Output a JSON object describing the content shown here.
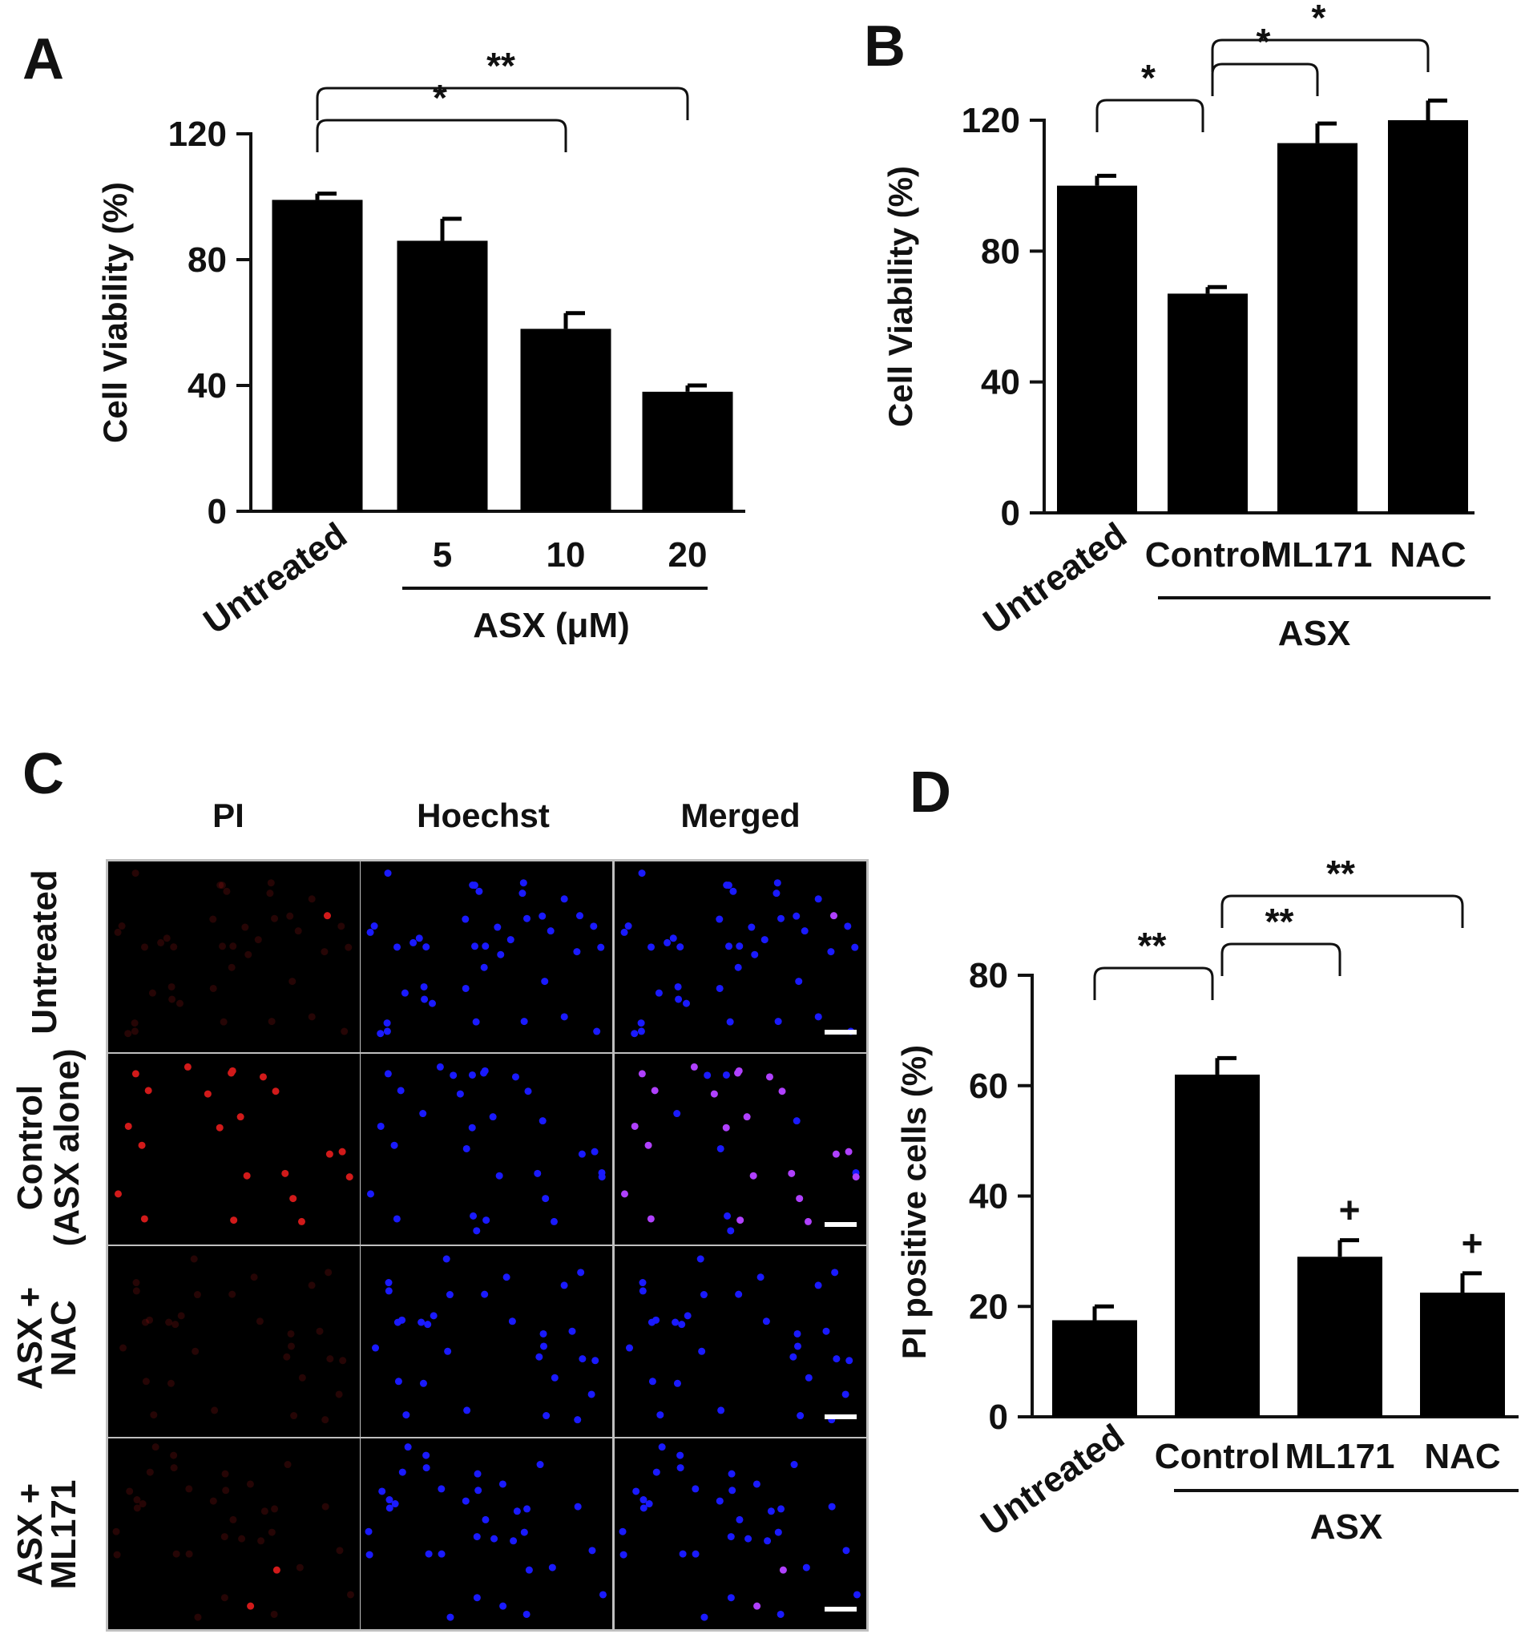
{
  "panels": {
    "A": "A",
    "B": "B",
    "C": "C",
    "D": "D"
  },
  "chart_data": [
    {
      "id": "A",
      "type": "bar",
      "categories": [
        "Untreated",
        "5",
        "10",
        "20"
      ],
      "values": [
        99,
        86,
        58,
        38
      ],
      "errors": [
        2,
        7,
        5,
        2
      ],
      "ylabel": "Cell Viability (%)",
      "xlabel": "ASX (μM)",
      "group_label": "ASX (μM)",
      "group_categories": [
        "5",
        "10",
        "20"
      ],
      "ylim": [
        0,
        120
      ],
      "yticks": [
        "0",
        "40",
        "80",
        "120"
      ],
      "significance": [
        {
          "from": "Untreated",
          "to": "10",
          "label": "*"
        },
        {
          "from": "Untreated",
          "to": "20",
          "label": "**"
        }
      ]
    },
    {
      "id": "B",
      "type": "bar",
      "categories": [
        "Untreated",
        "Control",
        "ML171",
        "NAC"
      ],
      "values": [
        100,
        67,
        113,
        120
      ],
      "errors": [
        3,
        2,
        6,
        6
      ],
      "ylabel": "Cell Viability (%)",
      "group_label": "ASX",
      "group_categories": [
        "Control",
        "ML171",
        "NAC"
      ],
      "ylim": [
        0,
        120
      ],
      "yticks": [
        "0",
        "40",
        "80",
        "120"
      ],
      "significance": [
        {
          "from": "Untreated",
          "to": "Control",
          "label": "*"
        },
        {
          "from": "Control",
          "to": "ML171",
          "label": "*"
        },
        {
          "from": "Control",
          "to": "NAC",
          "label": "*"
        }
      ]
    },
    {
      "id": "D",
      "type": "bar",
      "categories": [
        "Untreated",
        "Control",
        "ML171",
        "NAC"
      ],
      "values": [
        17.5,
        62,
        29,
        22.5
      ],
      "errors": [
        2.5,
        3,
        3,
        3.5
      ],
      "ylabel": "PI positive cells (%)",
      "group_label": "ASX",
      "group_categories": [
        "Control",
        "ML171",
        "NAC"
      ],
      "ylim": [
        0,
        80
      ],
      "yticks": [
        "0",
        "20",
        "40",
        "60",
        "80"
      ],
      "markers": [
        "",
        "",
        "+",
        "+"
      ],
      "significance": [
        {
          "from": "Untreated",
          "to": "Control",
          "label": "**"
        },
        {
          "from": "Control",
          "to": "ML171",
          "label": "**"
        },
        {
          "from": "Control",
          "to": "NAC",
          "label": "**"
        }
      ]
    }
  ],
  "microscopy": {
    "columns": [
      "PI",
      "Hoechst",
      "Merged"
    ],
    "rows": [
      {
        "line1": "Untreated",
        "line2": ""
      },
      {
        "line1": "Control",
        "line2": "(ASX  alone)"
      },
      {
        "line1": "ASX +",
        "line2": "NAC"
      },
      {
        "line1": "ASX +",
        "line2": "ML171"
      }
    ],
    "colors": {
      "pi": "#d11a1a",
      "hoechst": "#1a1aff",
      "merged_overlap": "#b040ff",
      "background": "#000000",
      "grid": "#bfbfbf",
      "scale_bar": "#ffffff"
    }
  }
}
